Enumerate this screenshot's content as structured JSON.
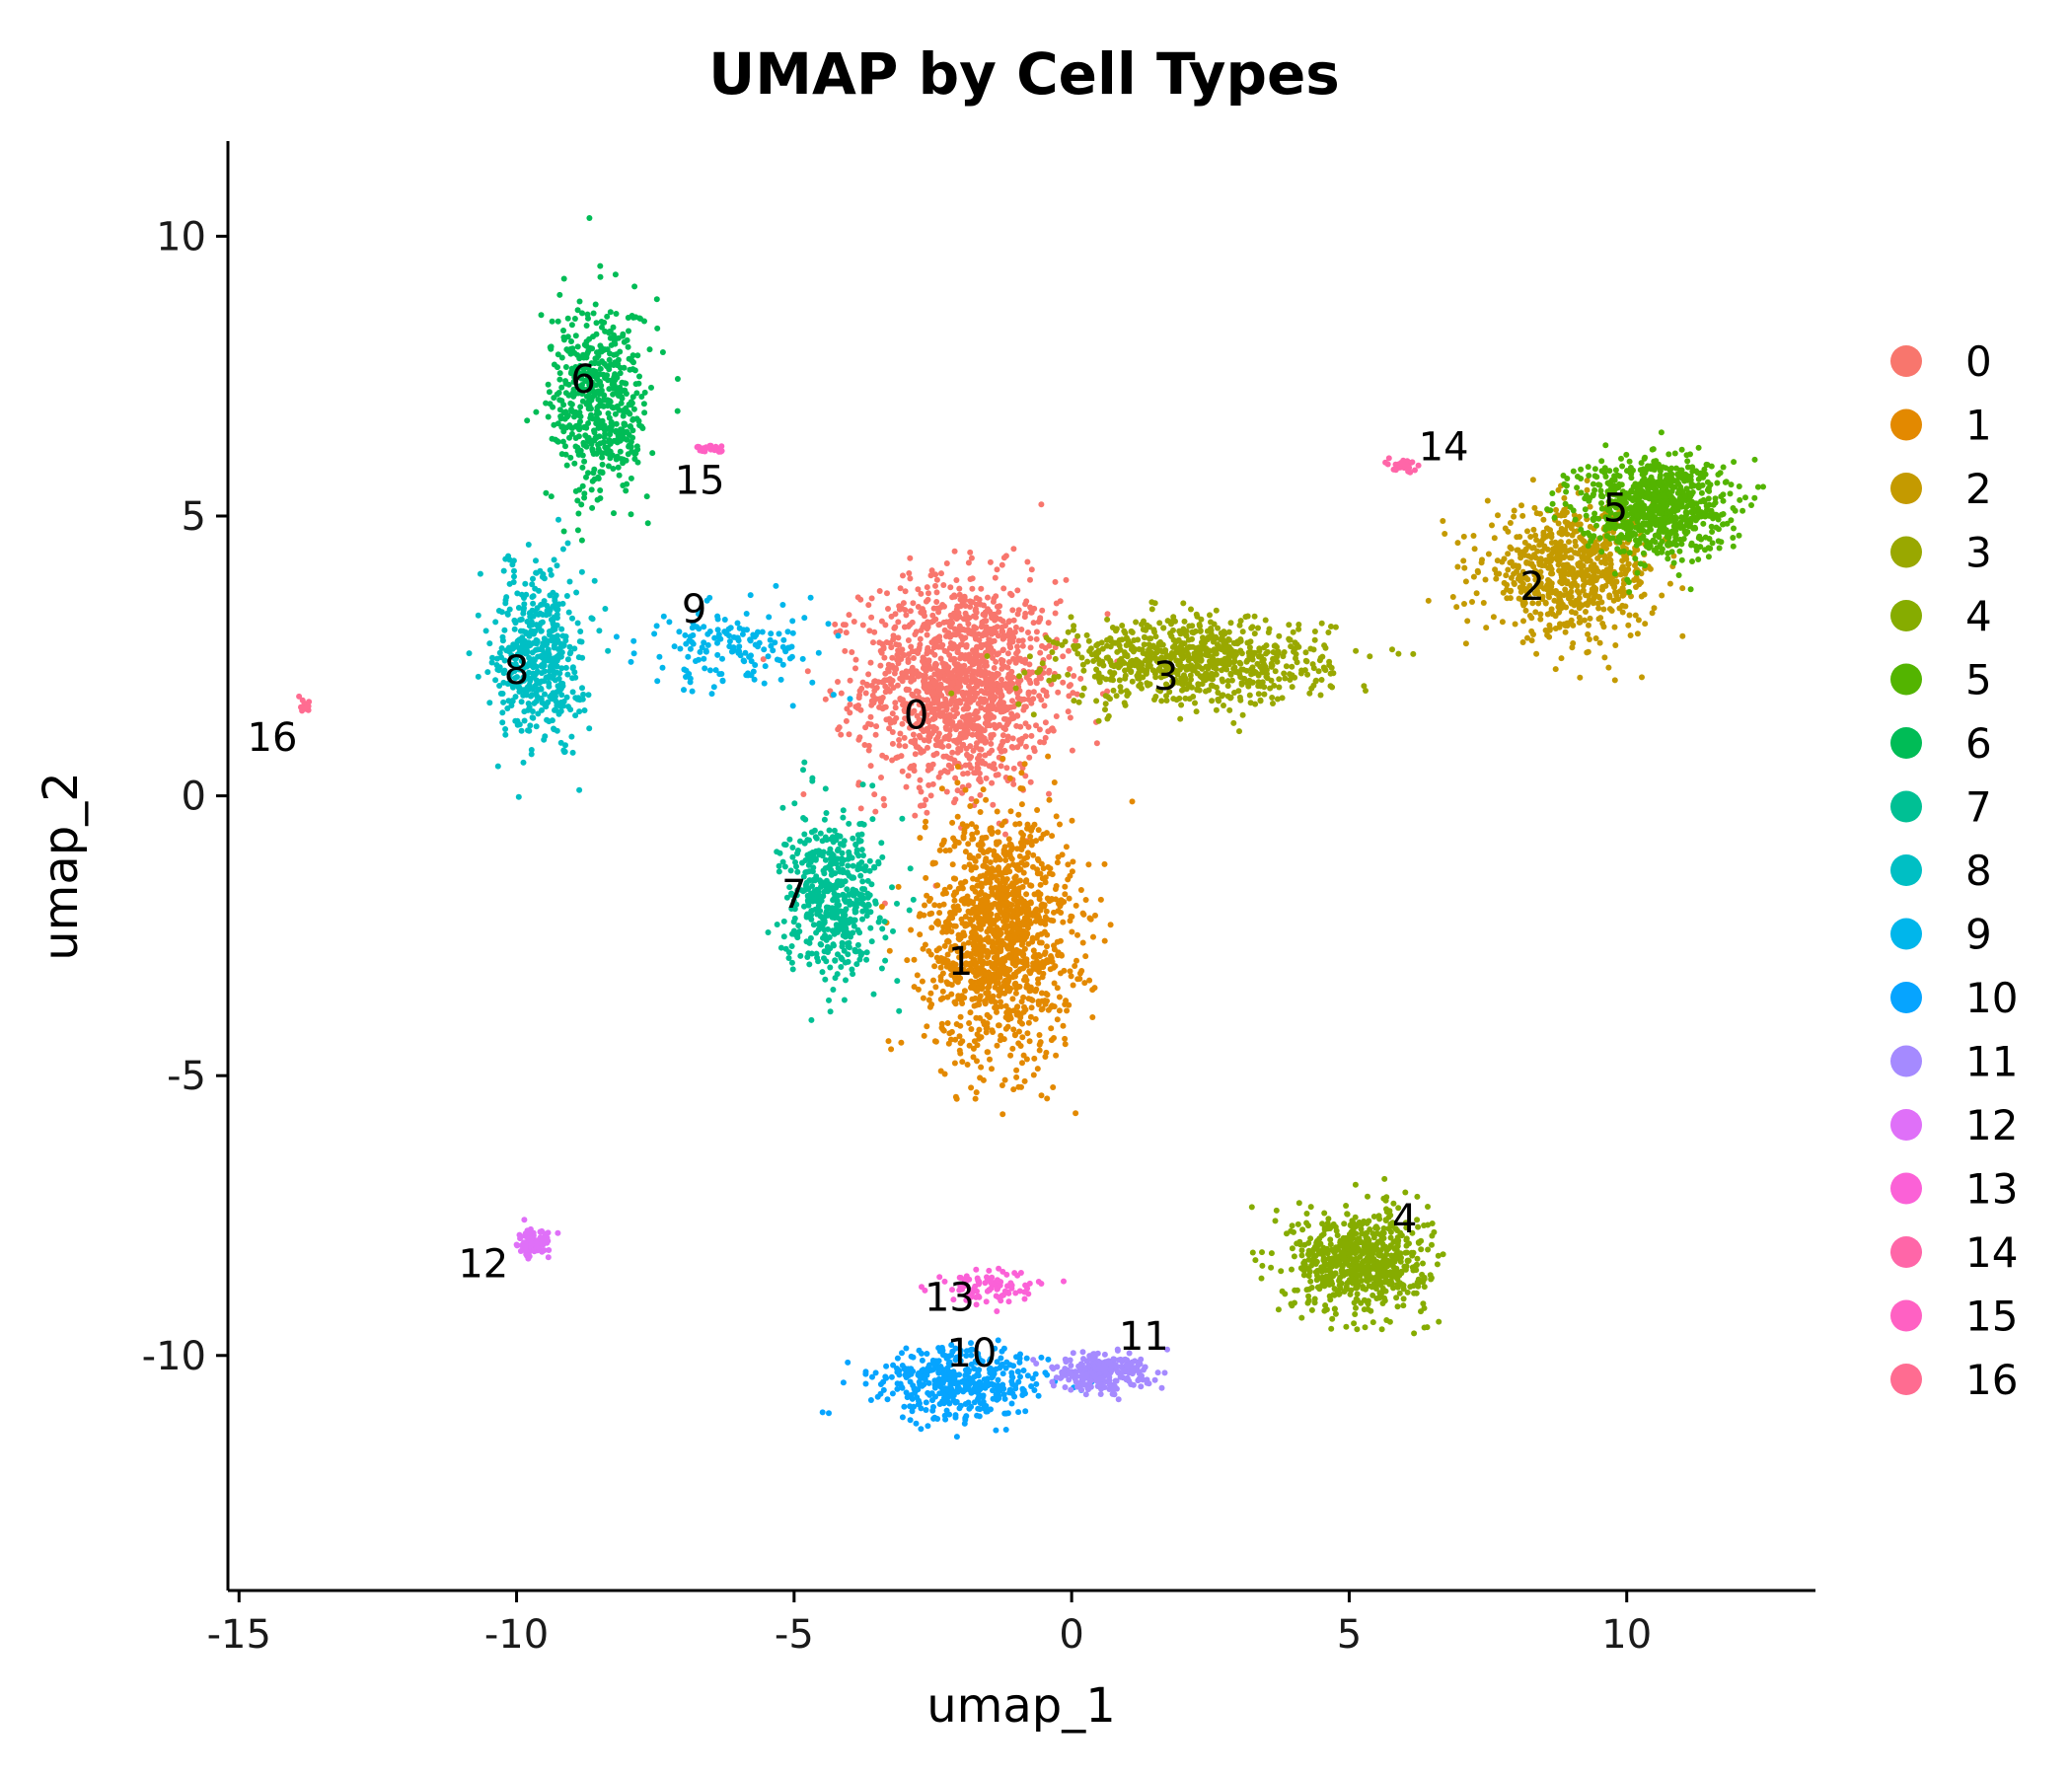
{
  "chart_data": {
    "type": "scatter",
    "title": "UMAP by Cell Types",
    "xlabel": "umap_1",
    "ylabel": "umap_2",
    "xlim": [
      -15.2,
      13.4
    ],
    "ylim": [
      -14.2,
      11.7
    ],
    "xticks": [
      -15,
      -10,
      -5,
      0,
      5,
      10
    ],
    "xtick_labels": [
      "-15",
      "-10",
      "-5",
      "0",
      "5",
      "10"
    ],
    "yticks": [
      -10,
      -5,
      0,
      5,
      10
    ],
    "ytick_labels": [
      "-10",
      "-5",
      "0",
      "5",
      "10"
    ],
    "grid": false,
    "legend_position": "right",
    "clusters": [
      {
        "name": "0",
        "color": "#F8766D",
        "label_pos": [
          -2.8,
          1.2
        ],
        "centroid": [
          -2.0,
          2.0
        ],
        "spread": [
          1.6,
          1.7
        ],
        "n": 1400
      },
      {
        "name": "1",
        "color": "#E38900",
        "label_pos": [
          -2.0,
          -3.2
        ],
        "centroid": [
          -1.3,
          -2.5
        ],
        "spread": [
          1.2,
          2.0
        ],
        "n": 1300
      },
      {
        "name": "2",
        "color": "#C49A00",
        "label_pos": [
          8.3,
          3.5
        ],
        "centroid": [
          9.0,
          4.0
        ],
        "spread": [
          1.4,
          1.0
        ],
        "n": 700
      },
      {
        "name": "3",
        "color": "#99A800",
        "label_pos": [
          1.7,
          1.9
        ],
        "centroid": [
          2.2,
          2.4
        ],
        "spread": [
          2.2,
          0.7
        ],
        "n": 800
      },
      {
        "name": "4",
        "color": "#86AC00",
        "label_pos": [
          6.0,
          -7.8
        ],
        "centroid": [
          5.2,
          -8.3
        ],
        "spread": [
          1.1,
          0.8
        ],
        "n": 700
      },
      {
        "name": "5",
        "color": "#53B400",
        "label_pos": [
          9.8,
          4.9
        ],
        "centroid": [
          10.5,
          5.2
        ],
        "spread": [
          1.2,
          0.8
        ],
        "n": 800
      },
      {
        "name": "6",
        "color": "#00BC56",
        "label_pos": [
          -8.8,
          7.2
        ],
        "centroid": [
          -8.5,
          7.0
        ],
        "spread": [
          0.8,
          1.6
        ],
        "n": 550
      },
      {
        "name": "7",
        "color": "#00C094",
        "label_pos": [
          -5.0,
          -2.0
        ],
        "centroid": [
          -4.3,
          -1.8
        ],
        "spread": [
          0.8,
          1.3
        ],
        "n": 500
      },
      {
        "name": "8",
        "color": "#00BFC4",
        "label_pos": [
          -10.0,
          2.0
        ],
        "centroid": [
          -9.6,
          2.5
        ],
        "spread": [
          0.7,
          1.4
        ],
        "n": 500
      },
      {
        "name": "9",
        "color": "#00B6EB",
        "label_pos": [
          -6.8,
          3.1
        ],
        "centroid": [
          -6.0,
          2.7
        ],
        "spread": [
          1.5,
          0.7
        ],
        "n": 160
      },
      {
        "name": "10",
        "color": "#06A4FF",
        "label_pos": [
          -1.8,
          -10.2
        ],
        "centroid": [
          -2.0,
          -10.5
        ],
        "spread": [
          1.4,
          0.6
        ],
        "n": 420
      },
      {
        "name": "11",
        "color": "#A58AFF",
        "label_pos": [
          1.3,
          -9.9
        ],
        "centroid": [
          0.5,
          -10.3
        ],
        "spread": [
          0.8,
          0.3
        ],
        "n": 260
      },
      {
        "name": "12",
        "color": "#DF70F8",
        "label_pos": [
          -10.6,
          -8.6
        ],
        "centroid": [
          -9.7,
          -8.0
        ],
        "spread": [
          0.25,
          0.2
        ],
        "n": 120
      },
      {
        "name": "13",
        "color": "#FB61D7",
        "label_pos": [
          -2.2,
          -9.2
        ],
        "centroid": [
          -1.5,
          -8.8
        ],
        "spread": [
          0.8,
          0.3
        ],
        "n": 90
      },
      {
        "name": "14",
        "color": "#FF66A8",
        "label_pos": [
          6.7,
          6.0
        ],
        "centroid": [
          6.0,
          5.9
        ],
        "spread": [
          0.2,
          0.1
        ],
        "n": 40
      },
      {
        "name": "15",
        "color": "#FF61C3",
        "label_pos": [
          -6.7,
          5.4
        ],
        "centroid": [
          -6.5,
          6.2
        ],
        "spread": [
          0.3,
          0.05
        ],
        "n": 30
      },
      {
        "name": "16",
        "color": "#FF6C91",
        "label_pos": [
          -14.4,
          0.8
        ],
        "centroid": [
          -13.8,
          1.6
        ],
        "spread": [
          0.1,
          0.1
        ],
        "n": 20
      }
    ],
    "legend": [
      {
        "label": "0",
        "color": "#F8766D"
      },
      {
        "label": "1",
        "color": "#E38900"
      },
      {
        "label": "2",
        "color": "#C49A00"
      },
      {
        "label": "3",
        "color": "#99A800"
      },
      {
        "label": "4",
        "color": "#86AC00"
      },
      {
        "label": "5",
        "color": "#53B400"
      },
      {
        "label": "6",
        "color": "#00BC56"
      },
      {
        "label": "7",
        "color": "#00C094"
      },
      {
        "label": "8",
        "color": "#00BFC4"
      },
      {
        "label": "9",
        "color": "#00B6EB"
      },
      {
        "label": "10",
        "color": "#06A4FF"
      },
      {
        "label": "11",
        "color": "#A58AFF"
      },
      {
        "label": "12",
        "color": "#DF70F8"
      },
      {
        "label": "13",
        "color": "#FB61D7"
      },
      {
        "label": "14",
        "color": "#FF66A8"
      },
      {
        "label": "15",
        "color": "#FF61C3"
      },
      {
        "label": "16",
        "color": "#FF6C91"
      }
    ]
  }
}
